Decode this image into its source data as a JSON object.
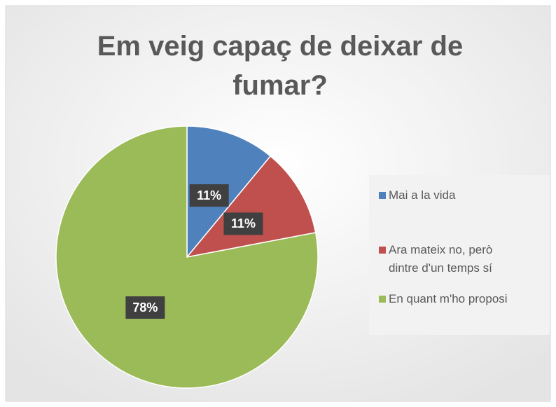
{
  "chart_data": {
    "type": "pie",
    "title": "Em veig capaç de deixar de fumar?",
    "categories": [
      "Mai a la vida",
      "Ara mateix no, però dintre d'un temps sí",
      "En quant m'ho proposi"
    ],
    "values": [
      11,
      11,
      78
    ],
    "value_labels": [
      "11%",
      "11%",
      "78%"
    ],
    "colors": [
      "#4f81bd",
      "#c0504d",
      "#9bbb59"
    ],
    "legend": "right"
  }
}
